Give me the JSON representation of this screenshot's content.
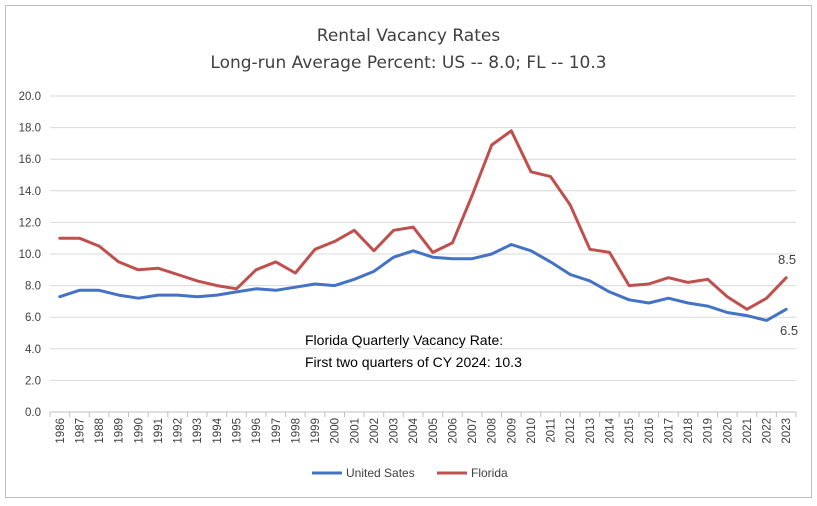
{
  "chart_data": {
    "type": "line",
    "title": "Rental Vacancy Rates",
    "subtitle": "Long-run Average Percent:  US -- 8.0; FL -- 10.3",
    "xlabel": "",
    "ylabel": "",
    "ylim": [
      0,
      20
    ],
    "yticks": [
      "0.0",
      "2.0",
      "4.0",
      "6.0",
      "8.0",
      "10.0",
      "12.0",
      "14.0",
      "16.0",
      "18.0",
      "20.0"
    ],
    "grid": true,
    "legend": "bottom-center",
    "categories": [
      "1986",
      "1987",
      "1988",
      "1989",
      "1990",
      "1991",
      "1992",
      "1993",
      "1994",
      "1995",
      "1996",
      "1997",
      "1998",
      "1999",
      "2000",
      "2001",
      "2002",
      "2003",
      "2004",
      "2005",
      "2006",
      "2007",
      "2008",
      "2009",
      "2010",
      "2011",
      "2012",
      "2013",
      "2014",
      "2015",
      "2016",
      "2017",
      "2018",
      "2019",
      "2020",
      "2021",
      "2022",
      "2023"
    ],
    "series": [
      {
        "name": "United Sates",
        "color": "#4472c4",
        "values": [
          7.3,
          7.7,
          7.7,
          7.4,
          7.2,
          7.4,
          7.4,
          7.3,
          7.4,
          7.6,
          7.8,
          7.7,
          7.9,
          8.1,
          8.0,
          8.4,
          8.9,
          9.8,
          10.2,
          9.8,
          9.7,
          9.7,
          10.0,
          10.6,
          10.2,
          9.5,
          8.7,
          8.3,
          7.6,
          7.1,
          6.9,
          7.2,
          6.9,
          6.7,
          6.3,
          6.1,
          5.8,
          6.5
        ]
      },
      {
        "name": "Florida",
        "color": "#c0504d",
        "values": [
          11.0,
          11.0,
          10.5,
          9.5,
          9.0,
          9.1,
          8.7,
          8.3,
          8.0,
          7.8,
          9.0,
          9.5,
          8.8,
          10.3,
          10.8,
          11.5,
          10.2,
          11.5,
          11.7,
          10.1,
          10.7,
          13.7,
          16.9,
          17.8,
          15.2,
          14.9,
          13.1,
          10.3,
          10.1,
          8.0,
          8.1,
          8.5,
          8.2,
          8.4,
          7.3,
          6.5,
          7.2,
          8.5
        ]
      }
    ],
    "end_labels": {
      "florida": "8.5",
      "us": "6.5"
    },
    "annotation": {
      "line1": "Florida Quarterly Vacancy Rate:",
      "line2": "First two quarters of CY 2024:  10.3"
    }
  }
}
